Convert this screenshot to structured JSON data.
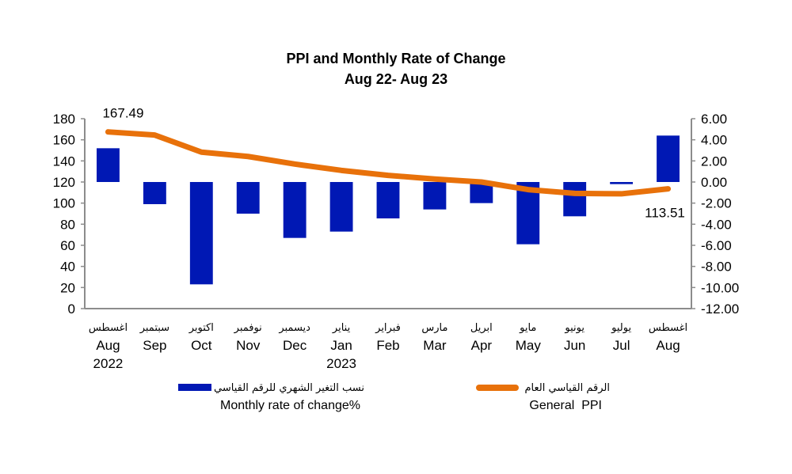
{
  "chart_data": {
    "type": "bar+line",
    "title": "PPI and Monthly Rate of Change",
    "subtitle": "Aug 22- Aug 23",
    "categories": [
      {
        "ar": "اغسطس",
        "en": "Aug",
        "year": "2022"
      },
      {
        "ar": "سبتمبر",
        "en": "Sep",
        "year": ""
      },
      {
        "ar": "اكتوبر",
        "en": "Oct",
        "year": ""
      },
      {
        "ar": "نوفمبر",
        "en": "Nov",
        "year": ""
      },
      {
        "ar": "ديسمبر",
        "en": "Dec",
        "year": ""
      },
      {
        "ar": "يناير",
        "en": "Jan",
        "year": "2023"
      },
      {
        "ar": "فبراير",
        "en": "Feb",
        "year": ""
      },
      {
        "ar": "مارس",
        "en": "Mar",
        "year": ""
      },
      {
        "ar": "ابريل",
        "en": "Apr",
        "year": ""
      },
      {
        "ar": "مايو",
        "en": "May",
        "year": ""
      },
      {
        "ar": "يونيو",
        "en": "Jun",
        "year": ""
      },
      {
        "ar": "يوليو",
        "en": "Jul",
        "year": ""
      },
      {
        "ar": "اغسطس",
        "en": "Aug",
        "year": ""
      }
    ],
    "series": [
      {
        "name": "Monthly rate of change%",
        "name_ar": "نسب التغير الشهري للرقم القياسي",
        "type": "bar",
        "axis": "right",
        "color": "#0018B4",
        "values": [
          3.2,
          -2.1,
          -9.7,
          -3.0,
          -5.3,
          -4.7,
          -3.45,
          -2.6,
          -2.0,
          -5.9,
          -3.25,
          -0.2,
          4.4
        ]
      },
      {
        "name": "General  PPI",
        "name_ar": "الرقم القياسي العام",
        "type": "line",
        "axis": "left",
        "color": "#E8710A",
        "values": [
          167.49,
          164.5,
          148.3,
          144.2,
          137.0,
          131.0,
          126.3,
          122.8,
          120.0,
          112.8,
          109.2,
          108.8,
          113.51
        ]
      }
    ],
    "data_labels": [
      {
        "series": 1,
        "index": 0,
        "text": "167.49"
      },
      {
        "series": 1,
        "index": 12,
        "text": "113.51"
      }
    ],
    "y_left": {
      "range": [
        0,
        180
      ],
      "ticks": [
        "0",
        "20",
        "40",
        "60",
        "80",
        "100",
        "120",
        "140",
        "160",
        "180"
      ]
    },
    "y_right": {
      "range": [
        -12,
        6
      ],
      "ticks": [
        "-12.00",
        "-10.00",
        "-8.00",
        "-6.00",
        "-4.00",
        "-2.00",
        "0.00",
        "2.00",
        "4.00",
        "6.00"
      ]
    },
    "grid": false,
    "legend_position": "bottom"
  }
}
